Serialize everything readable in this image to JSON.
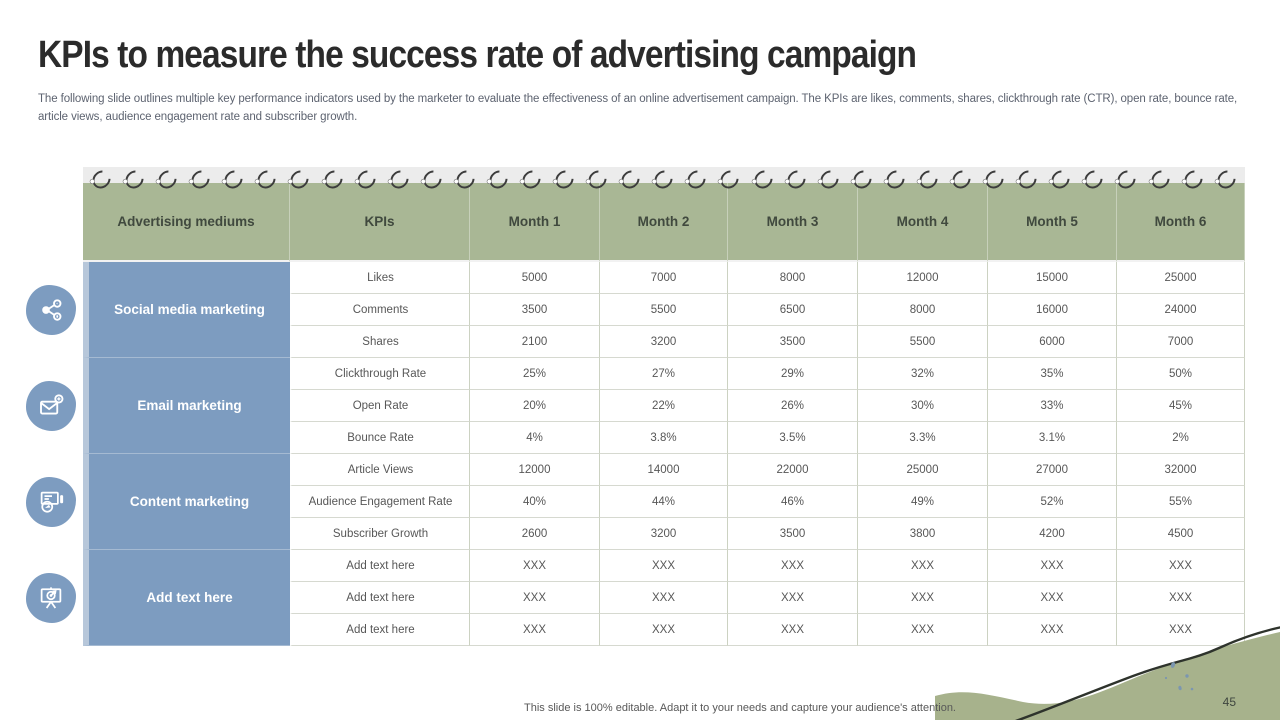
{
  "slide": {
    "title": "KPIs to measure the success rate of advertising campaign",
    "subtitle": "The following slide outlines multiple key performance indicators used by the marketer to evaluate the effectiveness of an online advertisement campaign. The KPIs are likes, comments, shares, clickthrough rate (CTR), open rate, bounce rate, article views, audience engagement rate and subscriber growth.",
    "footer": "This slide is 100% editable.  Adapt it to your needs and capture your audience's attention.",
    "page_number": "45"
  },
  "table": {
    "headers": [
      "Advertising mediums",
      "KPIs",
      "Month 1",
      "Month 2",
      "Month 3",
      "Month 4",
      "Month 5",
      "Month 6"
    ],
    "groups": [
      {
        "medium": "Social media marketing",
        "icon": "share-network-icon",
        "rows": [
          {
            "kpi": "Likes",
            "values": [
              "5000",
              "7000",
              "8000",
              "12000",
              "15000",
              "25000"
            ]
          },
          {
            "kpi": "Comments",
            "values": [
              "3500",
              "5500",
              "6500",
              "8000",
              "16000",
              "24000"
            ]
          },
          {
            "kpi": "Shares",
            "values": [
              "2100",
              "3200",
              "3500",
              "5500",
              "6000",
              "7000"
            ]
          }
        ]
      },
      {
        "medium": "Email marketing",
        "icon": "email-campaign-icon",
        "rows": [
          {
            "kpi": "Clickthrough Rate",
            "values": [
              "25%",
              "27%",
              "29%",
              "32%",
              "35%",
              "50%"
            ]
          },
          {
            "kpi": "Open Rate",
            "values": [
              "20%",
              "22%",
              "26%",
              "30%",
              "33%",
              "45%"
            ]
          },
          {
            "kpi": "Bounce Rate",
            "values": [
              "4%",
              "3.8%",
              "3.5%",
              "3.3%",
              "3.1%",
              "2%"
            ]
          }
        ]
      },
      {
        "medium": "Content marketing",
        "icon": "content-megaphone-icon",
        "rows": [
          {
            "kpi": "Article Views",
            "values": [
              "12000",
              "14000",
              "22000",
              "25000",
              "27000",
              "32000"
            ]
          },
          {
            "kpi": "Audience Engagement  Rate",
            "values": [
              "40%",
              "44%",
              "46%",
              "49%",
              "52%",
              "55%"
            ]
          },
          {
            "kpi": "Subscriber Growth",
            "values": [
              "2600",
              "3200",
              "3500",
              "3800",
              "4200",
              "4500"
            ]
          }
        ]
      },
      {
        "medium": "Add text here",
        "icon": "presentation-board-icon",
        "rows": [
          {
            "kpi": "Add text here",
            "values": [
              "XXX",
              "XXX",
              "XXX",
              "XXX",
              "XXX",
              "XXX"
            ]
          },
          {
            "kpi": "Add text here",
            "values": [
              "XXX",
              "XXX",
              "XXX",
              "XXX",
              "XXX",
              "XXX"
            ]
          },
          {
            "kpi": "Add text here",
            "values": [
              "XXX",
              "XXX",
              "XXX",
              "XXX",
              "XXX",
              "XXX"
            ]
          }
        ]
      }
    ]
  },
  "colors": {
    "header_green": "#a9b795",
    "category_blue": "#7d9cc0",
    "category_accent": "#b7c7da",
    "binder_strip": "#ececec",
    "body_text": "#575757",
    "wave_green": "#a7b28c",
    "curve_dark": "#2e332c",
    "dots_blue": "#7b96b0"
  },
  "decoration": {
    "ring_count": 35
  }
}
